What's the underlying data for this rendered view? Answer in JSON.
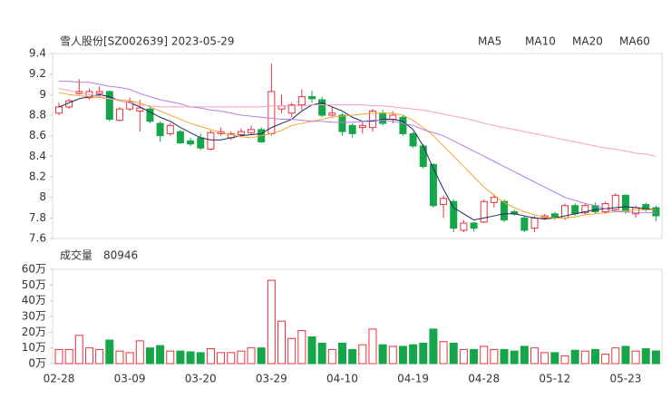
{
  "chart_data": [
    {
      "type": "candlestick",
      "title": "雪人股份[SZ002639] 2023-05-29",
      "categories": [
        "02-28",
        null,
        null,
        null,
        null,
        null,
        null,
        "03-09",
        null,
        null,
        null,
        null,
        null,
        null,
        "03-20",
        null,
        null,
        null,
        null,
        null,
        null,
        "03-29",
        null,
        null,
        null,
        null,
        null,
        null,
        "04-10",
        null,
        null,
        null,
        null,
        null,
        null,
        "04-19",
        null,
        null,
        null,
        null,
        null,
        null,
        "04-28",
        null,
        null,
        null,
        null,
        null,
        null,
        "05-12",
        null,
        null,
        null,
        null,
        null,
        null,
        "05-23",
        null,
        null,
        null
      ],
      "open": [
        8.82,
        8.88,
        9.01,
        8.97,
        9.01,
        9.03,
        8.75,
        8.86,
        8.84,
        8.86,
        8.72,
        8.62,
        8.64,
        8.55,
        8.58,
        8.47,
        8.62,
        8.58,
        8.61,
        8.63,
        8.66,
        8.62,
        8.86,
        8.82,
        8.9,
        8.98,
        8.95,
        8.8,
        8.8,
        8.7,
        8.68,
        8.68,
        8.82,
        8.76,
        8.78,
        8.62,
        8.5,
        8.32,
        7.93,
        7.96,
        7.68,
        7.75,
        7.76,
        7.95,
        7.96,
        7.86,
        7.8,
        7.7,
        7.8,
        7.84,
        7.8,
        7.92,
        7.85,
        7.92,
        7.86,
        7.88,
        8.02,
        7.84,
        7.93,
        7.9
      ],
      "high": [
        8.92,
        8.96,
        9.15,
        9.06,
        9.08,
        9.04,
        8.88,
        8.97,
        8.95,
        8.88,
        8.74,
        8.72,
        8.66,
        8.58,
        8.62,
        8.65,
        8.68,
        8.64,
        8.67,
        8.7,
        8.68,
        9.3,
        9.0,
        8.92,
        9.05,
        9.04,
        8.98,
        8.88,
        8.82,
        8.72,
        8.74,
        8.86,
        8.85,
        8.84,
        8.8,
        8.64,
        8.52,
        8.33,
        8.02,
        7.98,
        7.78,
        7.76,
        7.98,
        8.03,
        7.98,
        7.88,
        7.82,
        7.82,
        7.84,
        7.86,
        7.94,
        7.94,
        7.94,
        7.95,
        7.96,
        8.04,
        8.03,
        7.92,
        7.95,
        7.92
      ],
      "low": [
        8.8,
        8.86,
        9.0,
        8.95,
        8.98,
        8.74,
        8.74,
        8.84,
        8.64,
        8.72,
        8.54,
        8.6,
        8.52,
        8.5,
        8.46,
        8.46,
        8.6,
        8.56,
        8.6,
        8.61,
        8.53,
        8.6,
        8.82,
        8.78,
        8.85,
        8.92,
        8.78,
        8.78,
        8.6,
        8.58,
        8.62,
        8.64,
        8.7,
        8.72,
        8.6,
        8.48,
        8.28,
        7.9,
        7.8,
        7.66,
        7.66,
        7.67,
        7.75,
        7.9,
        7.76,
        7.82,
        7.66,
        7.66,
        7.78,
        7.78,
        7.78,
        7.82,
        7.83,
        7.84,
        7.84,
        7.86,
        7.84,
        7.8,
        7.86,
        7.77
      ],
      "close": [
        8.88,
        8.94,
        9.03,
        9.03,
        9.03,
        8.76,
        8.86,
        8.93,
        8.87,
        8.74,
        8.6,
        8.7,
        8.53,
        8.52,
        8.48,
        8.63,
        8.64,
        8.62,
        8.64,
        8.66,
        8.54,
        9.03,
        8.89,
        8.9,
        8.98,
        8.96,
        8.8,
        8.82,
        8.64,
        8.62,
        8.7,
        8.84,
        8.72,
        8.8,
        8.62,
        8.5,
        8.3,
        7.92,
        7.99,
        7.7,
        7.75,
        7.7,
        7.96,
        8.0,
        7.78,
        7.84,
        7.68,
        7.8,
        7.82,
        7.8,
        7.92,
        7.84,
        7.92,
        7.86,
        7.94,
        8.02,
        7.86,
        7.9,
        7.88,
        7.82
      ],
      "up_color": "#e8323c",
      "down_color": "#16a64a",
      "series": [
        {
          "name": "MA5",
          "color": "#1e2a5c",
          "values": [
            8.88,
            8.92,
            8.96,
            8.98,
            9.0,
            8.98,
            8.94,
            8.92,
            8.88,
            8.83,
            8.78,
            8.74,
            8.68,
            8.63,
            8.58,
            8.56,
            8.56,
            8.58,
            8.6,
            8.61,
            8.62,
            8.68,
            8.72,
            8.76,
            8.84,
            8.9,
            8.92,
            8.88,
            8.84,
            8.78,
            8.74,
            8.74,
            8.76,
            8.76,
            8.74,
            8.66,
            8.5,
            8.28,
            8.08,
            7.9,
            7.84,
            7.78,
            7.8,
            7.82,
            7.84,
            7.84,
            7.82,
            7.8,
            7.79,
            7.8,
            7.82,
            7.84,
            7.86,
            7.88,
            7.89,
            7.9,
            7.91,
            7.9,
            7.89,
            7.88
          ]
        },
        {
          "name": "MA10",
          "color": "#f3a533",
          "values": [
            9.02,
            9.0,
            8.99,
            8.98,
            8.97,
            8.96,
            8.95,
            8.94,
            8.92,
            8.88,
            8.84,
            8.8,
            8.76,
            8.72,
            8.69,
            8.66,
            8.63,
            8.61,
            8.59,
            8.58,
            8.6,
            8.62,
            8.65,
            8.7,
            8.72,
            8.74,
            8.76,
            8.78,
            8.79,
            8.8,
            8.81,
            8.82,
            8.82,
            8.82,
            8.8,
            8.75,
            8.68,
            8.6,
            8.5,
            8.4,
            8.3,
            8.2,
            8.1,
            8.02,
            7.95,
            7.9,
            7.86,
            7.83,
            7.81,
            7.8,
            7.8,
            7.81,
            7.83,
            7.84,
            7.85,
            7.86,
            7.87,
            7.88,
            7.88,
            7.88
          ]
        },
        {
          "name": "MA20",
          "color": "#b77ddf",
          "values": [
            9.13,
            9.13,
            9.12,
            9.12,
            9.1,
            9.08,
            9.07,
            9.05,
            9.01,
            8.98,
            8.95,
            8.93,
            8.91,
            8.88,
            8.87,
            8.85,
            8.84,
            8.82,
            8.8,
            8.79,
            8.78,
            8.77,
            8.76,
            8.76,
            8.75,
            8.74,
            8.74,
            8.73,
            8.73,
            8.73,
            8.74,
            8.75,
            8.75,
            8.74,
            8.72,
            8.7,
            8.66,
            8.63,
            8.6,
            8.55,
            8.5,
            8.45,
            8.4,
            8.35,
            8.3,
            8.25,
            8.2,
            8.15,
            8.1,
            8.05,
            8.0,
            7.97,
            7.94,
            7.92,
            7.89,
            7.86,
            7.86,
            7.85,
            7.85,
            7.85
          ]
        },
        {
          "name": "MA60",
          "color": "#f29fc5",
          "values": [
            9.06,
            9.04,
            9.02,
            9.0,
            8.98,
            8.96,
            8.94,
            8.92,
            8.9,
            8.89,
            8.88,
            8.88,
            8.88,
            8.88,
            8.88,
            8.88,
            8.88,
            8.88,
            8.88,
            8.88,
            8.88,
            8.89,
            8.89,
            8.89,
            8.89,
            8.9,
            8.9,
            8.9,
            8.9,
            8.9,
            8.9,
            8.89,
            8.89,
            8.88,
            8.87,
            8.86,
            8.85,
            8.83,
            8.81,
            8.79,
            8.77,
            8.75,
            8.72,
            8.7,
            8.68,
            8.66,
            8.64,
            8.62,
            8.6,
            8.58,
            8.56,
            8.54,
            8.52,
            8.5,
            8.48,
            8.47,
            8.45,
            8.43,
            8.42,
            8.4
          ]
        }
      ],
      "ylim": [
        7.6,
        9.4
      ],
      "yticks": [
        9.4,
        9.2,
        9,
        8.8,
        8.6,
        8.4,
        8.2,
        8,
        7.8,
        7.6
      ]
    },
    {
      "type": "bar",
      "title": "成交量",
      "latest_volume": 80946,
      "values": [
        9,
        9,
        18,
        10,
        9,
        15,
        8,
        7,
        14.5,
        10,
        11.5,
        8,
        8,
        7.5,
        7,
        9.5,
        7,
        7,
        8,
        10,
        10,
        53,
        27,
        16,
        21,
        17,
        13,
        9,
        13,
        9,
        12,
        22,
        12,
        11,
        11,
        12,
        13,
        22,
        14,
        13,
        9,
        9,
        11,
        9,
        9,
        8,
        11,
        10,
        7,
        7,
        5,
        8.5,
        8,
        9,
        6,
        10,
        11,
        8,
        9.5,
        8.09
      ],
      "ylim": [
        0,
        60
      ],
      "yticks": [
        {
          "value": 60,
          "label": "60万"
        },
        {
          "value": 50,
          "label": "50万"
        },
        {
          "value": 40,
          "label": "40万"
        },
        {
          "value": 30,
          "label": "30万"
        },
        {
          "value": 20,
          "label": "20万"
        },
        {
          "value": 10,
          "label": "10万"
        },
        {
          "value": 0,
          "label": "0万"
        }
      ]
    }
  ]
}
